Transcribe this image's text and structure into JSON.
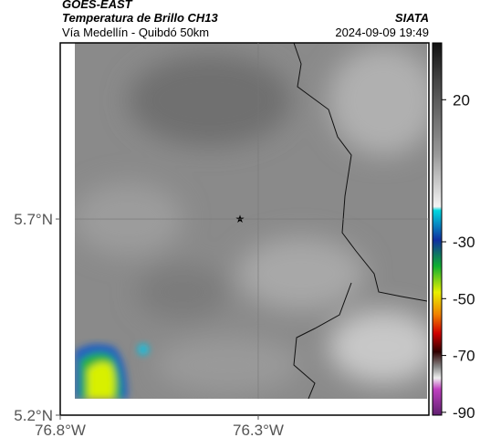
{
  "header": {
    "title": "GOES-EAST",
    "subtitle": "Temperatura de Brillo CH13",
    "brand": "SIATA",
    "route": "Vía Medellín - Quibdó 50km",
    "timestamp": "2024-09-09 19:49"
  },
  "map": {
    "xlim": [
      -76.8,
      -75.869
    ],
    "ylim": [
      5.2,
      6.149
    ],
    "xticks": [
      {
        "value": -76.8,
        "label": "76.8°W"
      },
      {
        "value": -76.3,
        "label": "76.3°W"
      }
    ],
    "yticks": [
      {
        "value": 5.2,
        "label": "5.2°N"
      },
      {
        "value": 5.7,
        "label": "5.7°N"
      }
    ]
  },
  "colorbar": {
    "lim": [
      40,
      -91
    ],
    "ticks": [
      20,
      -30,
      -50,
      -70,
      -90
    ]
  }
}
